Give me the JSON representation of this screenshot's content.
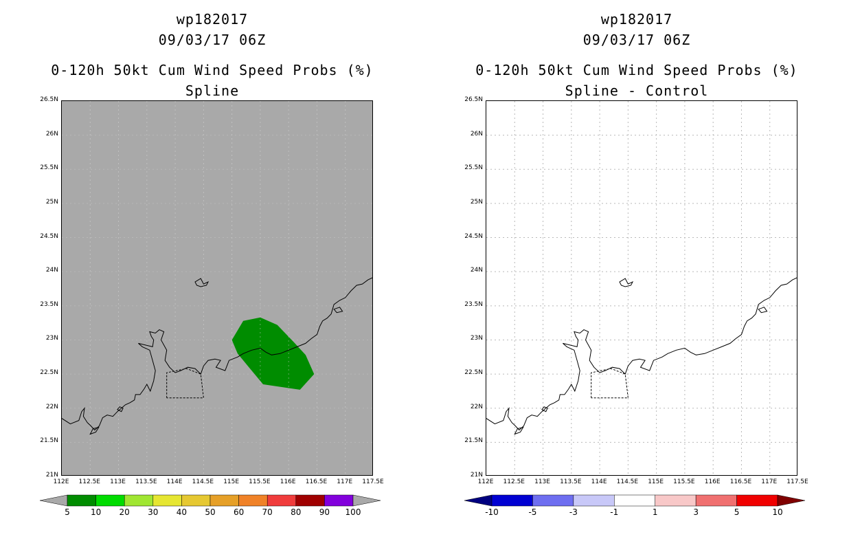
{
  "panels": [
    {
      "id": "left",
      "storm_id": "wp182017",
      "datetime": "09/03/17 06Z",
      "product": "0-120h 50kt Cum Wind Speed Probs (%)",
      "subtitle": "Spline",
      "background_color": "#a9a9a9",
      "colorbar": {
        "colors": [
          "#008c00",
          "#00dc00",
          "#a0e632",
          "#e6e632",
          "#e6c832",
          "#e6a028",
          "#f08228",
          "#f03c3c",
          "#a00000",
          "#8200dc"
        ],
        "labels": [
          "5",
          "10",
          "20",
          "30",
          "40",
          "50",
          "60",
          "70",
          "80",
          "90",
          "100"
        ]
      }
    },
    {
      "id": "right",
      "storm_id": "wp182017",
      "datetime": "09/03/17 06Z",
      "product": "0-120h 50kt Cum Wind Speed Probs (%)",
      "subtitle": "Spline - Control",
      "background_color": "#ffffff",
      "colorbar": {
        "colors": [
          "#0000d2",
          "#6e6ef0",
          "#c8c8f8",
          "#ffffff",
          "#f8c8c8",
          "#f07070",
          "#f00000"
        ],
        "end_colors": [
          "#000080",
          "#800000"
        ],
        "labels": [
          "-10",
          "-5",
          "-3",
          "-1",
          "1",
          "3",
          "5",
          "10"
        ]
      }
    }
  ],
  "axes": {
    "lat_labels": [
      "21N",
      "21.5N",
      "22N",
      "22.5N",
      "23N",
      "23.5N",
      "24N",
      "24.5N",
      "25N",
      "25.5N",
      "26N",
      "26.5N"
    ],
    "lon_labels": [
      "112E",
      "112.5E",
      "113E",
      "113.5E",
      "114E",
      "114.5E",
      "115E",
      "115.5E",
      "116E",
      "116.5E",
      "117E",
      "117.5E"
    ],
    "lat_range": [
      21,
      26.5
    ],
    "lon_range": [
      112,
      117.5
    ]
  },
  "probability_region": {
    "value_band": "5-10",
    "color": "#008c00",
    "polygon_lonlat": [
      [
        115.0,
        23.0
      ],
      [
        115.2,
        23.28
      ],
      [
        115.5,
        23.33
      ],
      [
        115.8,
        23.22
      ],
      [
        116.1,
        22.96
      ],
      [
        116.3,
        22.78
      ],
      [
        116.45,
        22.5
      ],
      [
        116.2,
        22.27
      ],
      [
        115.95,
        22.3
      ],
      [
        115.55,
        22.35
      ],
      [
        115.3,
        22.6
      ],
      [
        115.1,
        22.8
      ]
    ]
  },
  "coastline_lonlat": [
    [
      112.0,
      21.85
    ],
    [
      112.15,
      21.77
    ],
    [
      112.3,
      21.82
    ],
    [
      112.35,
      21.95
    ],
    [
      112.4,
      22.0
    ],
    [
      112.38,
      21.88
    ],
    [
      112.45,
      21.79
    ],
    [
      112.5,
      21.75
    ],
    [
      112.58,
      21.68
    ],
    [
      112.66,
      21.74
    ],
    [
      112.72,
      21.86
    ],
    [
      112.8,
      21.9
    ],
    [
      112.9,
      21.88
    ],
    [
      112.98,
      21.95
    ],
    [
      113.05,
      22.0
    ],
    [
      113.12,
      22.05
    ],
    [
      113.2,
      22.08
    ],
    [
      113.28,
      22.12
    ],
    [
      113.3,
      22.2
    ],
    [
      113.38,
      22.2
    ],
    [
      113.45,
      22.28
    ],
    [
      113.5,
      22.35
    ],
    [
      113.56,
      22.25
    ],
    [
      113.62,
      22.4
    ],
    [
      113.65,
      22.55
    ],
    [
      113.6,
      22.7
    ],
    [
      113.55,
      22.85
    ],
    [
      113.42,
      22.9
    ],
    [
      113.35,
      22.95
    ],
    [
      113.5,
      22.92
    ],
    [
      113.6,
      22.9
    ],
    [
      113.62,
      23.0
    ],
    [
      113.58,
      23.05
    ],
    [
      113.55,
      23.12
    ],
    [
      113.65,
      23.1
    ],
    [
      113.72,
      23.15
    ],
    [
      113.8,
      23.12
    ],
    [
      113.75,
      23.0
    ],
    [
      113.85,
      22.85
    ],
    [
      113.82,
      22.7
    ],
    [
      113.9,
      22.6
    ],
    [
      114.0,
      22.52
    ],
    [
      114.1,
      22.55
    ],
    [
      114.22,
      22.6
    ],
    [
      114.35,
      22.58
    ],
    [
      114.45,
      22.5
    ],
    [
      114.5,
      22.62
    ],
    [
      114.58,
      22.7
    ],
    [
      114.7,
      22.72
    ],
    [
      114.8,
      22.7
    ],
    [
      114.72,
      22.6
    ],
    [
      114.88,
      22.55
    ],
    [
      114.95,
      22.7
    ],
    [
      115.1,
      22.75
    ],
    [
      115.2,
      22.8
    ],
    [
      115.35,
      22.85
    ],
    [
      115.5,
      22.88
    ],
    [
      115.6,
      22.82
    ],
    [
      115.7,
      22.78
    ],
    [
      115.85,
      22.8
    ],
    [
      116.0,
      22.85
    ],
    [
      116.15,
      22.9
    ],
    [
      116.3,
      22.95
    ],
    [
      116.4,
      23.02
    ],
    [
      116.5,
      23.08
    ],
    [
      116.55,
      23.2
    ],
    [
      116.6,
      23.28
    ],
    [
      116.68,
      23.32
    ],
    [
      116.75,
      23.38
    ],
    [
      116.8,
      23.52
    ],
    [
      116.9,
      23.58
    ],
    [
      117.0,
      23.62
    ],
    [
      117.1,
      23.72
    ],
    [
      117.2,
      23.8
    ],
    [
      117.3,
      23.82
    ],
    [
      117.4,
      23.88
    ],
    [
      117.5,
      23.92
    ]
  ],
  "islands_lonlat": [
    [
      [
        114.35,
        23.85
      ],
      [
        114.45,
        23.9
      ],
      [
        114.5,
        23.82
      ],
      [
        114.58,
        23.85
      ],
      [
        114.55,
        23.8
      ],
      [
        114.45,
        23.78
      ],
      [
        114.38,
        23.8
      ]
    ],
    [
      [
        116.8,
        23.45
      ],
      [
        116.9,
        23.48
      ],
      [
        116.95,
        23.42
      ],
      [
        116.85,
        23.4
      ]
    ],
    [
      [
        112.5,
        21.62
      ],
      [
        112.6,
        21.65
      ],
      [
        112.65,
        21.72
      ],
      [
        112.55,
        21.7
      ]
    ],
    [
      [
        112.98,
        21.98
      ],
      [
        113.05,
        21.95
      ],
      [
        113.08,
        22.0
      ],
      [
        113.02,
        22.02
      ]
    ]
  ],
  "hk_boundary_lonlat": [
    [
      113.85,
      22.15
    ],
    [
      113.85,
      22.52
    ],
    [
      114.2,
      22.58
    ],
    [
      114.45,
      22.5
    ],
    [
      114.5,
      22.15
    ],
    [
      113.85,
      22.15
    ]
  ]
}
